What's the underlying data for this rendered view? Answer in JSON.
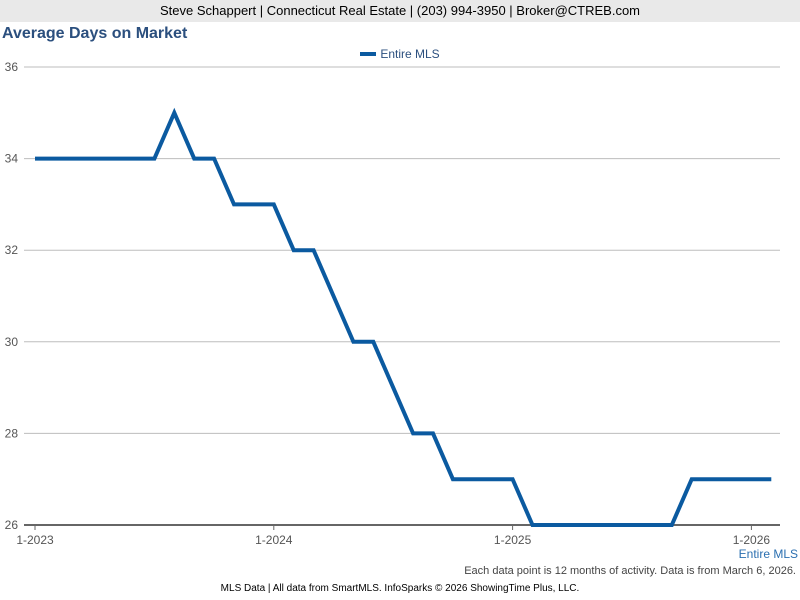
{
  "header": {
    "contact": "Steve Schappert | Connecticut Real Estate | (203) 994-3950 | Broker@CTREB.com"
  },
  "chart_data": {
    "type": "line",
    "title": "Average Days on Market",
    "xlabel": "",
    "ylabel": "",
    "ylim": [
      26,
      36
    ],
    "yticks": [
      "26",
      "28",
      "30",
      "32",
      "34",
      "36"
    ],
    "xticks": [
      {
        "label": "1-2023",
        "value": "2023-01"
      },
      {
        "label": "1-2024",
        "value": "2024-01"
      },
      {
        "label": "1-2025",
        "value": "2025-01"
      },
      {
        "label": "1-2026",
        "value": "2026-01"
      }
    ],
    "grid": "horizontal",
    "legend": "top-center",
    "series": [
      {
        "name": "Entire MLS",
        "color": "#0b5aa0",
        "x": [
          "2023-01",
          "2023-02",
          "2023-03",
          "2023-04",
          "2023-05",
          "2023-06",
          "2023-07",
          "2023-08",
          "2023-09",
          "2023-10",
          "2023-11",
          "2023-12",
          "2024-01",
          "2024-02",
          "2024-03",
          "2024-04",
          "2024-05",
          "2024-06",
          "2024-07",
          "2024-08",
          "2024-09",
          "2024-10",
          "2024-11",
          "2024-12",
          "2025-01",
          "2025-02",
          "2025-03",
          "2025-04",
          "2025-05",
          "2025-06",
          "2025-07",
          "2025-08",
          "2025-09",
          "2025-10",
          "2025-11",
          "2025-12",
          "2026-01",
          "2026-02"
        ],
        "values": [
          34,
          34,
          34,
          34,
          34,
          34,
          34,
          35,
          34,
          34,
          33,
          33,
          33,
          32,
          32,
          31,
          30,
          30,
          29,
          28,
          28,
          27,
          27,
          27,
          27,
          26,
          26,
          26,
          26,
          26,
          26,
          26,
          26,
          27,
          27,
          27,
          27,
          27
        ]
      }
    ]
  },
  "series_end_label": "Entire MLS",
  "footnote": "Each data point is 12 months of activity. Data is from March 6, 2026.",
  "footer": "MLS Data | All data from SmartMLS. InfoSparks © 2026 ShowingTime Plus, LLC."
}
